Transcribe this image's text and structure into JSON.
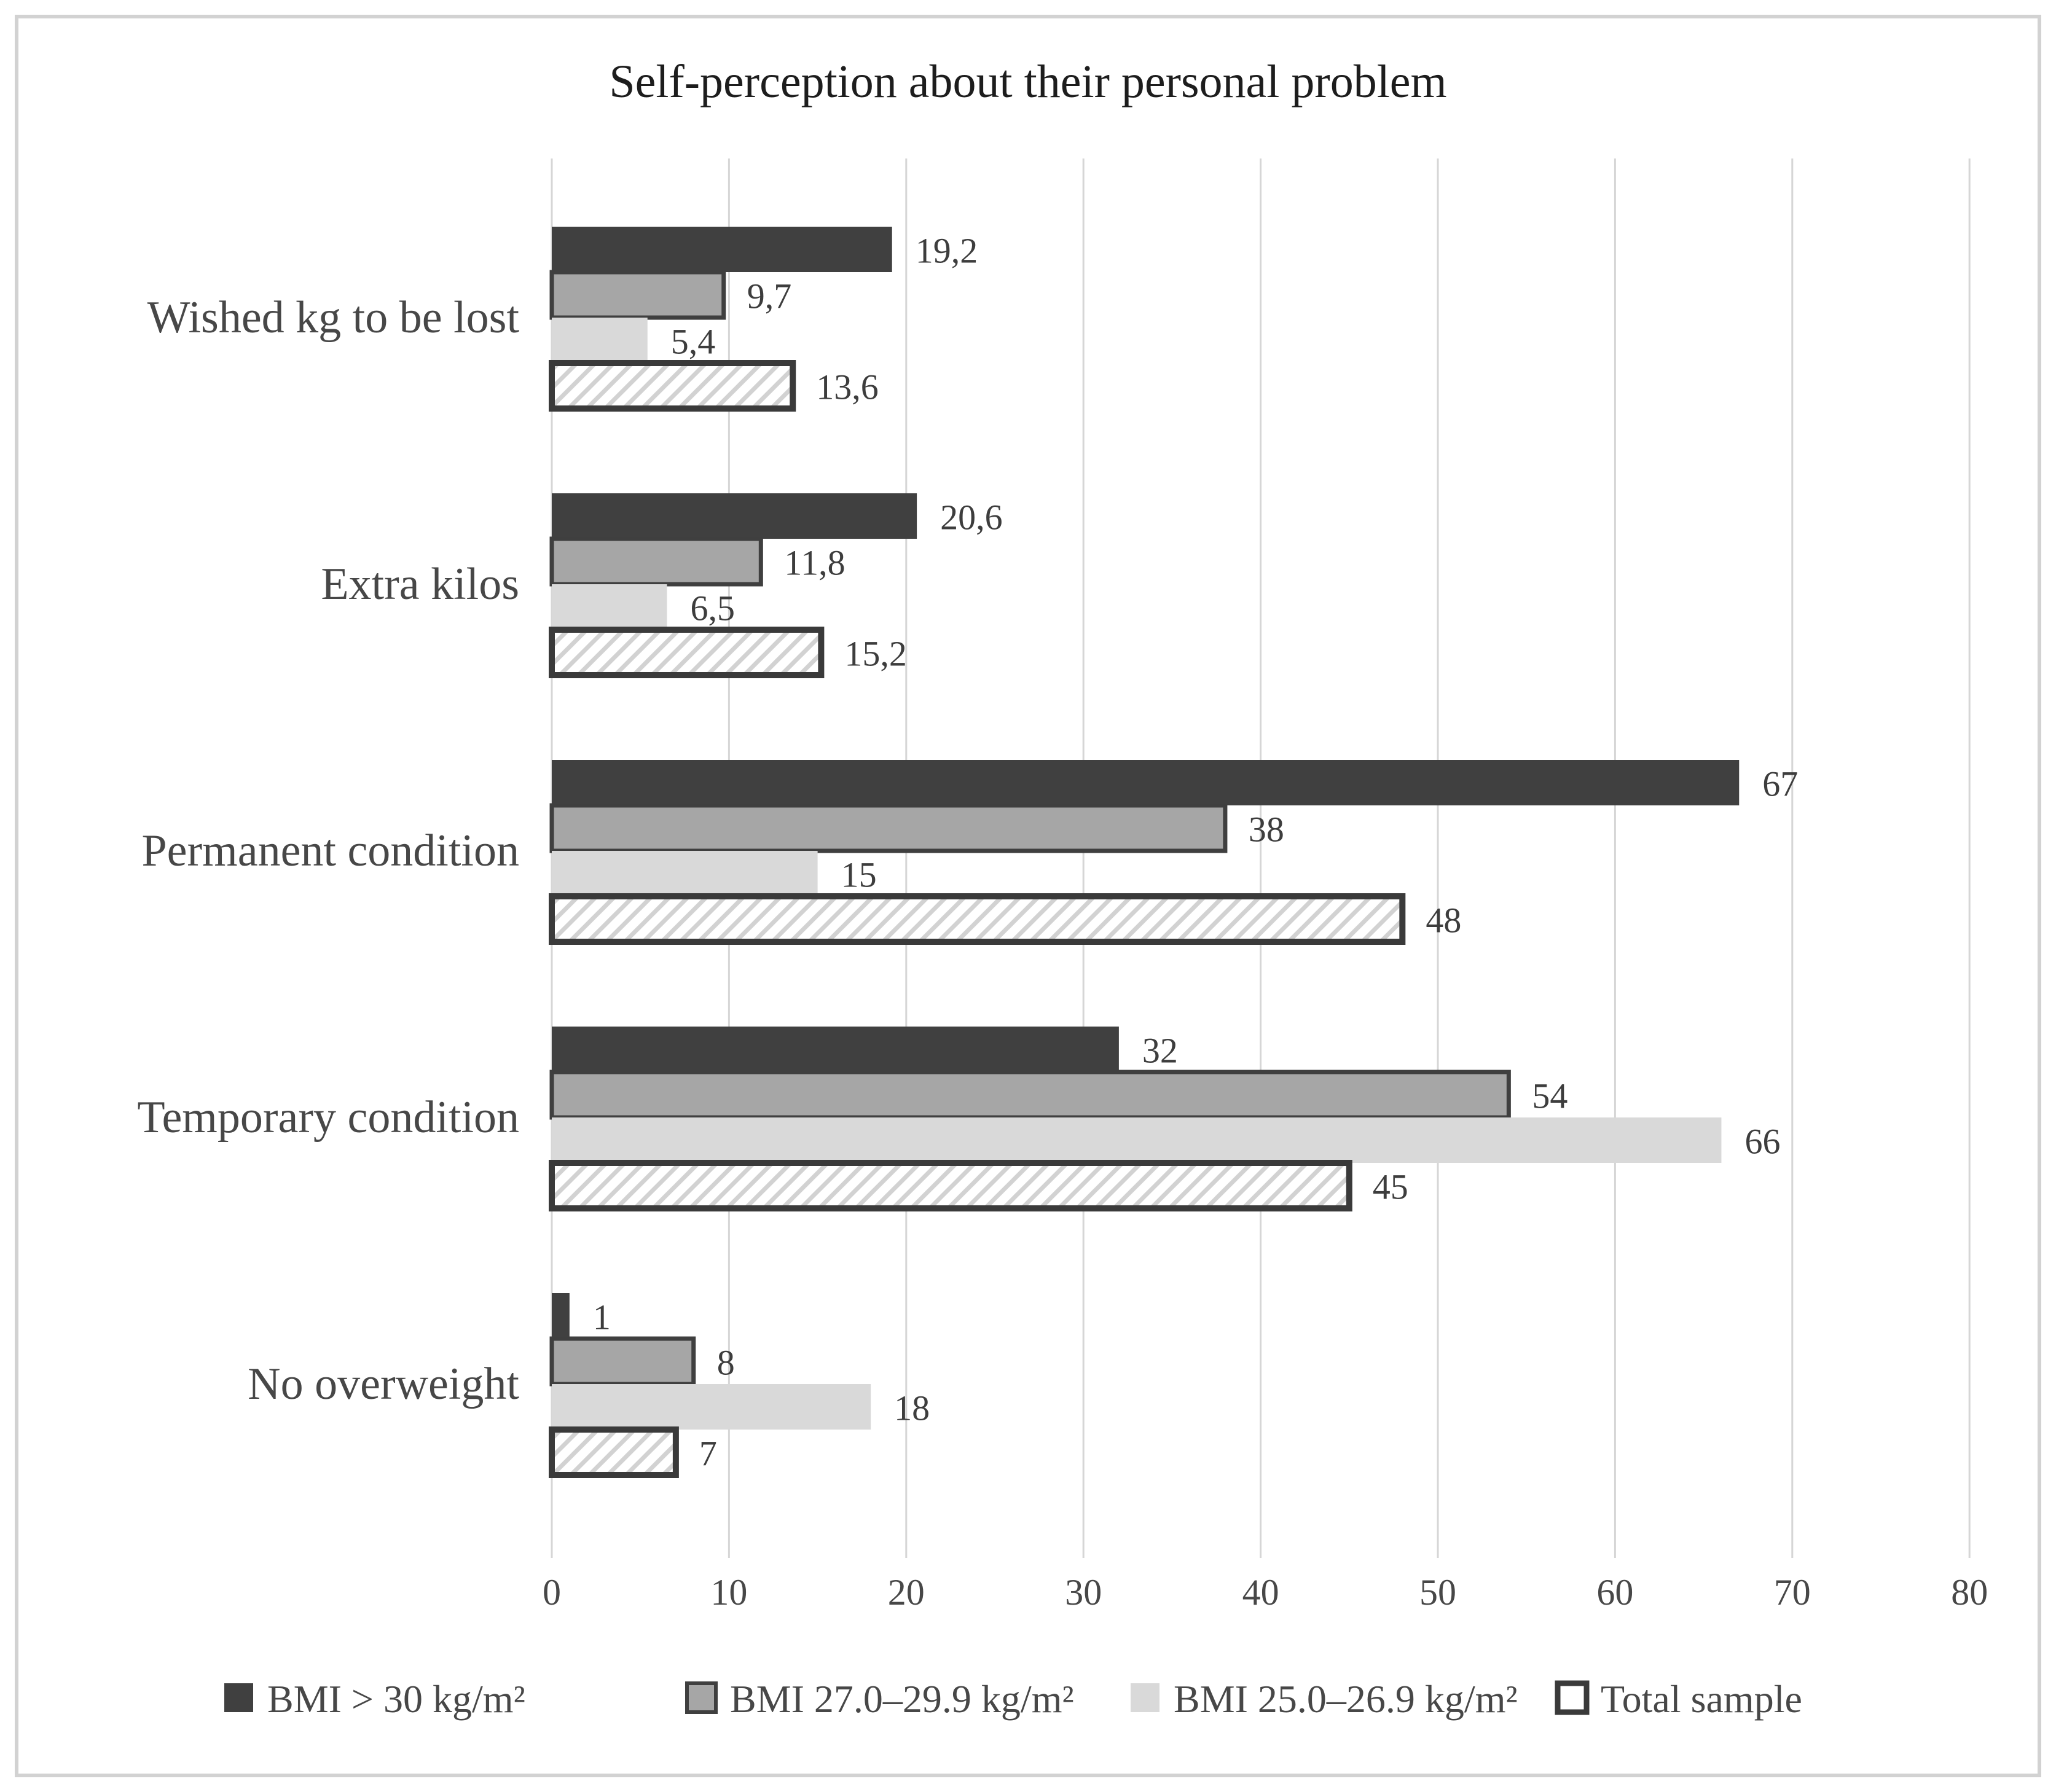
{
  "chart_data": {
    "type": "bar",
    "orientation": "horizontal",
    "title": "Self-perception about their personal problem",
    "categories": [
      "Wished kg to be lost",
      "Extra kilos",
      "Permanent condition",
      "Temporary condition",
      "No overweight"
    ],
    "series": [
      {
        "name": "BMI > 30 kg/m²",
        "color": "#404040",
        "border": null,
        "pattern": null,
        "values": [
          19.2,
          20.6,
          67,
          32,
          1
        ],
        "labels": [
          "19,2",
          "20,6",
          "67",
          "32",
          "1"
        ]
      },
      {
        "name": "BMI 27.0–29.9 kg/m²",
        "color": "#a6a6a6",
        "border": "#3f3f3f",
        "pattern": null,
        "values": [
          9.7,
          11.8,
          38,
          54,
          8
        ],
        "labels": [
          "9,7",
          "11,8",
          "38",
          "54",
          "8"
        ]
      },
      {
        "name": "BMI 25.0–26.9 kg/m²",
        "color": "#d9d9d9",
        "border": null,
        "pattern": null,
        "values": [
          5.4,
          6.5,
          15,
          66,
          18
        ],
        "labels": [
          "5,4",
          "6,5",
          "15",
          "66",
          "18"
        ]
      },
      {
        "name": "Total sample",
        "color": "#ffffff",
        "border": "#3a3a3a",
        "pattern": "diagonal-hatch",
        "values": [
          13.6,
          15.2,
          48,
          45,
          7
        ],
        "labels": [
          "13,6",
          "15,2",
          "48",
          "45",
          "7"
        ]
      }
    ],
    "x_axis": {
      "min": 0,
      "max": 80,
      "tick_interval": 10,
      "tick_labels": [
        "0",
        "10",
        "20",
        "30",
        "40",
        "50",
        "60",
        "70",
        "80"
      ]
    },
    "grid": true,
    "legend_position": "bottom",
    "text_color": "#474747",
    "value_label_color": "#3d3d3d",
    "gridline_color": "#d6d6d6",
    "frame_color": "#d2d2d2",
    "hatch_line_color": "#d2d2d2"
  }
}
